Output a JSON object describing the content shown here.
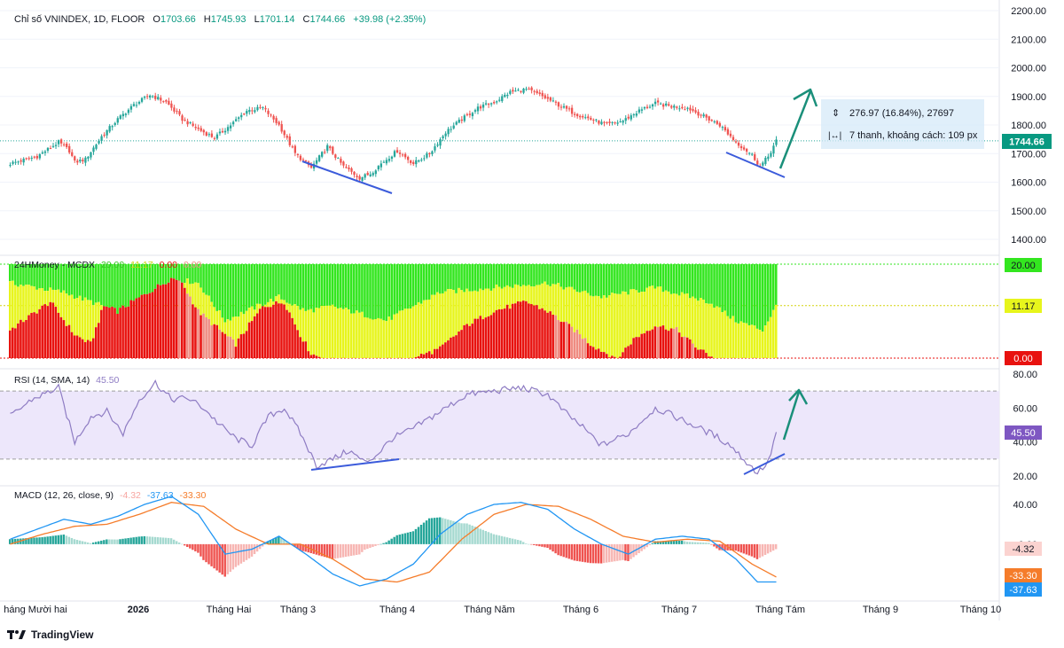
{
  "brand": {
    "logo": "tradingview-logo",
    "name": "TradingView"
  },
  "colors": {
    "up": "#26a69a",
    "down": "#ef5350",
    "blueLine": "#3b5bdb",
    "arrow": "#1a8f7a",
    "mcdx_green": "#33e61f",
    "mcdx_yellow": "#e7f51c",
    "mcdx_red": "#e8120f",
    "mcdx_salmon": "#ef8c82",
    "rsi_line": "#8e7cc3",
    "rsi_band": "#ede7fb",
    "macd_line": "#2196f3",
    "signal_line": "#f57c2a",
    "hist_up_strong": "#26a69a",
    "hist_up_weak": "#a5d9d0",
    "hist_down_strong": "#ef5350",
    "hist_down_weak": "#f7b6b3"
  },
  "chart_data": [
    {
      "type": "candlestick",
      "title": "Chỉ số VNINDEX, 1D, FLOOR",
      "ohlc_legend": {
        "o_label": "O",
        "o": "1703.66",
        "h_label": "H",
        "h": "1745.93",
        "l_label": "L",
        "l": "1701.14",
        "c_label": "C",
        "c": "1744.66",
        "change": "+39.98 (+2.35%)"
      },
      "y_ticks": [
        "2200.00",
        "2100.00",
        "2000.00",
        "1900.00",
        "1800.00",
        "1700.00",
        "1600.00",
        "1500.00",
        "1400.00"
      ],
      "ylim": [
        1345,
        2205
      ],
      "last_price": "1744.66",
      "x_labels": [
        "háng Mười hai",
        "2026",
        "Tháng Hai",
        "Tháng 3",
        "Tháng 4",
        "Tháng Năm",
        "Tháng 6",
        "Tháng 7",
        "Tháng Tám",
        "Tháng 9",
        "Tháng 10"
      ],
      "close_anchors": [
        [
          0,
          1665
        ],
        [
          10,
          1690
        ],
        [
          18,
          1740
        ],
        [
          22,
          1710
        ],
        [
          24,
          1670
        ],
        [
          28,
          1680
        ],
        [
          34,
          1760
        ],
        [
          40,
          1820
        ],
        [
          46,
          1870
        ],
        [
          52,
          1905
        ],
        [
          58,
          1880
        ],
        [
          64,
          1820
        ],
        [
          70,
          1785
        ],
        [
          76,
          1755
        ],
        [
          82,
          1800
        ],
        [
          88,
          1850
        ],
        [
          94,
          1860
        ],
        [
          100,
          1800
        ],
        [
          106,
          1700
        ],
        [
          112,
          1650
        ],
        [
          118,
          1725
        ],
        [
          124,
          1655
        ],
        [
          130,
          1615
        ],
        [
          134,
          1630
        ],
        [
          138,
          1665
        ],
        [
          144,
          1710
        ],
        [
          150,
          1665
        ],
        [
          156,
          1700
        ],
        [
          162,
          1775
        ],
        [
          168,
          1820
        ],
        [
          174,
          1860
        ],
        [
          180,
          1880
        ],
        [
          186,
          1915
        ],
        [
          192,
          1925
        ],
        [
          198,
          1900
        ],
        [
          204,
          1870
        ],
        [
          210,
          1840
        ],
        [
          216,
          1820
        ],
        [
          222,
          1800
        ],
        [
          228,
          1815
        ],
        [
          234,
          1850
        ],
        [
          240,
          1875
        ],
        [
          246,
          1865
        ],
        [
          252,
          1860
        ],
        [
          258,
          1830
        ],
        [
          264,
          1800
        ],
        [
          270,
          1740
        ],
        [
          276,
          1695
        ],
        [
          279,
          1655
        ],
        [
          282,
          1690
        ],
        [
          285,
          1744.66
        ]
      ],
      "projection_pct": "276.97 (16.84%), 27697",
      "projection_bars": "7 thanh, khoảng cách: 109 px"
    },
    {
      "type": "stacked-bar",
      "title": "24HMoney - MCDX",
      "legend_values": [
        "20.00",
        "11.17",
        "0.00",
        "0.00"
      ],
      "ylim": [
        0,
        20
      ],
      "labels": [
        "20.00",
        "11.17",
        "0.00"
      ],
      "yellow_anchors": [
        [
          0,
          16
        ],
        [
          20,
          14
        ],
        [
          40,
          10
        ],
        [
          60,
          17
        ],
        [
          70,
          16
        ],
        [
          80,
          8
        ],
        [
          100,
          13
        ],
        [
          110,
          10
        ],
        [
          120,
          11
        ],
        [
          140,
          8
        ],
        [
          160,
          14
        ],
        [
          180,
          15
        ],
        [
          200,
          16
        ],
        [
          220,
          13
        ],
        [
          240,
          15
        ],
        [
          260,
          12
        ],
        [
          270,
          8
        ],
        [
          280,
          6
        ],
        [
          285,
          11
        ]
      ],
      "red_anchors": [
        [
          0,
          6
        ],
        [
          15,
          12
        ],
        [
          24,
          5
        ],
        [
          30,
          3
        ],
        [
          36,
          13
        ],
        [
          44,
          14
        ],
        [
          52,
          18
        ],
        [
          58,
          20
        ],
        [
          62,
          18
        ],
        [
          70,
          10
        ],
        [
          78,
          6
        ],
        [
          84,
          3
        ],
        [
          94,
          11
        ],
        [
          102,
          12
        ],
        [
          108,
          5
        ],
        [
          112,
          1
        ],
        [
          116,
          0
        ],
        [
          150,
          0
        ],
        [
          160,
          2
        ],
        [
          170,
          7
        ],
        [
          180,
          10
        ],
        [
          192,
          12
        ],
        [
          200,
          10
        ],
        [
          210,
          6
        ],
        [
          216,
          3
        ],
        [
          222,
          1
        ],
        [
          226,
          0
        ],
        [
          232,
          4
        ],
        [
          240,
          7
        ],
        [
          248,
          6
        ],
        [
          256,
          2
        ],
        [
          262,
          0
        ],
        [
          285,
          0
        ]
      ]
    },
    {
      "type": "line",
      "title": "RSI (14, SMA, 14)",
      "current": "45.50",
      "y_ticks": [
        "80.00",
        "60.00",
        "40.00",
        "20.00"
      ],
      "ylim": [
        16,
        84
      ],
      "bands": [
        30,
        70
      ],
      "rsi_anchors": [
        [
          0,
          55
        ],
        [
          8,
          65
        ],
        [
          18,
          72
        ],
        [
          24,
          40
        ],
        [
          30,
          55
        ],
        [
          36,
          58
        ],
        [
          42,
          45
        ],
        [
          48,
          65
        ],
        [
          54,
          75
        ],
        [
          60,
          65
        ],
        [
          66,
          66
        ],
        [
          72,
          60
        ],
        [
          78,
          50
        ],
        [
          84,
          42
        ],
        [
          90,
          38
        ],
        [
          96,
          55
        ],
        [
          102,
          60
        ],
        [
          108,
          45
        ],
        [
          114,
          26
        ],
        [
          120,
          30
        ],
        [
          126,
          35
        ],
        [
          132,
          28
        ],
        [
          136,
          32
        ],
        [
          142,
          42
        ],
        [
          150,
          48
        ],
        [
          160,
          58
        ],
        [
          170,
          68
        ],
        [
          180,
          70
        ],
        [
          190,
          72
        ],
        [
          200,
          68
        ],
        [
          206,
          58
        ],
        [
          212,
          50
        ],
        [
          220,
          38
        ],
        [
          230,
          45
        ],
        [
          240,
          60
        ],
        [
          246,
          56
        ],
        [
          254,
          50
        ],
        [
          262,
          44
        ],
        [
          268,
          38
        ],
        [
          274,
          28
        ],
        [
          278,
          22
        ],
        [
          282,
          28
        ],
        [
          285,
          45.5
        ]
      ]
    },
    {
      "type": "line-histogram",
      "title": "MACD (12, 26, close, 9)",
      "legend_values": [
        "-4.32",
        "-37.63",
        "-33.30"
      ],
      "y_ticks": [
        "40.00",
        "0.00"
      ],
      "ylim": [
        -55,
        52
      ],
      "labels": [
        "-4.32",
        "-33.30",
        "-37.63"
      ],
      "macd_anchors": [
        [
          0,
          5
        ],
        [
          10,
          15
        ],
        [
          20,
          25
        ],
        [
          30,
          20
        ],
        [
          40,
          28
        ],
        [
          50,
          40
        ],
        [
          60,
          48
        ],
        [
          70,
          30
        ],
        [
          80,
          -10
        ],
        [
          90,
          -5
        ],
        [
          100,
          8
        ],
        [
          110,
          -10
        ],
        [
          120,
          -30
        ],
        [
          130,
          -42
        ],
        [
          140,
          -35
        ],
        [
          150,
          -20
        ],
        [
          160,
          10
        ],
        [
          170,
          30
        ],
        [
          180,
          40
        ],
        [
          190,
          42
        ],
        [
          200,
          35
        ],
        [
          210,
          15
        ],
        [
          220,
          0
        ],
        [
          230,
          -10
        ],
        [
          240,
          5
        ],
        [
          250,
          8
        ],
        [
          260,
          5
        ],
        [
          270,
          -15
        ],
        [
          278,
          -38
        ],
        [
          285,
          -38
        ]
      ],
      "signal_anchors": [
        [
          0,
          0
        ],
        [
          12,
          10
        ],
        [
          24,
          18
        ],
        [
          36,
          20
        ],
        [
          48,
          30
        ],
        [
          60,
          42
        ],
        [
          72,
          38
        ],
        [
          84,
          15
        ],
        [
          96,
          0
        ],
        [
          108,
          0
        ],
        [
          120,
          -15
        ],
        [
          132,
          -35
        ],
        [
          144,
          -38
        ],
        [
          156,
          -28
        ],
        [
          168,
          5
        ],
        [
          180,
          30
        ],
        [
          192,
          40
        ],
        [
          204,
          38
        ],
        [
          216,
          25
        ],
        [
          228,
          8
        ],
        [
          240,
          2
        ],
        [
          252,
          5
        ],
        [
          264,
          3
        ],
        [
          276,
          -20
        ],
        [
          285,
          -33
        ]
      ]
    }
  ]
}
